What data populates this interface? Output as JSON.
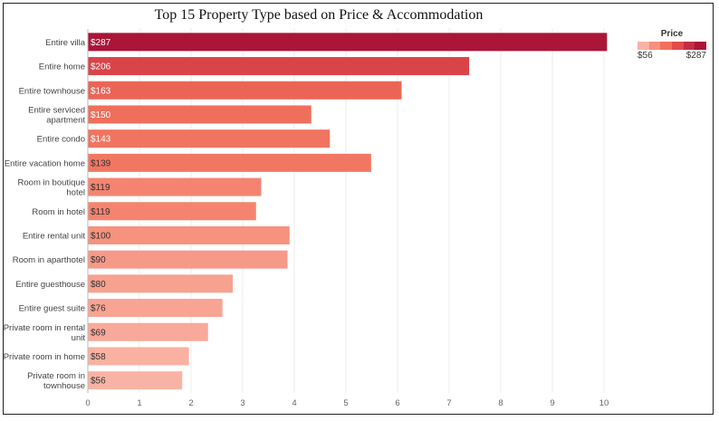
{
  "chart_data": {
    "type": "bar",
    "orientation": "horizontal",
    "title": "Top 15 Property Type based on Price & Accommodation",
    "xlabel": "",
    "ylabel": "",
    "xlim": [
      0,
      10.6
    ],
    "x_ticks": [
      "0",
      "1",
      "2",
      "3",
      "4",
      "5",
      "6",
      "7",
      "8",
      "9",
      "10"
    ],
    "grid": "vertical",
    "categories": [
      [
        "Entire villa"
      ],
      [
        "Entire home"
      ],
      [
        "Entire townhouse"
      ],
      [
        "Entire serviced",
        "apartment"
      ],
      [
        "Entire condo"
      ],
      [
        "Entire vacation home"
      ],
      [
        "Room in boutique",
        "hotel"
      ],
      [
        "Room in hotel"
      ],
      [
        "Entire rental unit"
      ],
      [
        "Room in aparthotel"
      ],
      [
        "Entire guesthouse"
      ],
      [
        "Entire guest suite"
      ],
      [
        "Private room in rental",
        "unit"
      ],
      [
        "Private room in home"
      ],
      [
        "Private room in",
        "townhouse"
      ]
    ],
    "values": [
      10.05,
      7.38,
      6.07,
      4.32,
      4.68,
      5.48,
      3.35,
      3.25,
      3.9,
      3.86,
      2.8,
      2.6,
      2.32,
      1.95,
      1.82
    ],
    "price_labels": [
      "$287",
      "$206",
      "$163",
      "$150",
      "$143",
      "$139",
      "$119",
      "$119",
      "$100",
      "$90",
      "$80",
      "$76",
      "$69",
      "$58",
      "$56"
    ],
    "prices": [
      287,
      206,
      163,
      150,
      143,
      139,
      119,
      119,
      100,
      90,
      80,
      76,
      69,
      58,
      56
    ],
    "color_legend": {
      "title": "Price",
      "min_label": "$56",
      "max_label": "$287",
      "min": 56,
      "max": 287,
      "colors": [
        "#f9b3a4",
        "#f6907c",
        "#f0705c",
        "#e04c4a",
        "#c52d44",
        "#aa1538"
      ]
    },
    "legend_position": "top-right"
  }
}
